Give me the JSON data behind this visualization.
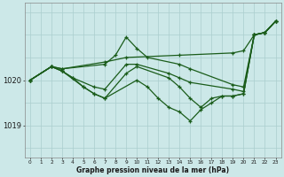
{
  "title": "Graphe pression niveau de la mer (hPa)",
  "bg_color": "#cce8e8",
  "line_color": "#1a5c1a",
  "grid_color": "#aacece",
  "ylabel_ticks": [
    1019,
    1020
  ],
  "xlim": [
    -0.5,
    23.5
  ],
  "ylim": [
    1018.3,
    1021.7
  ],
  "series": [
    {
      "x": [
        0,
        2,
        3,
        7,
        9,
        14,
        19,
        20,
        21,
        22,
        23
      ],
      "y": [
        1020.0,
        1020.3,
        1020.25,
        1020.4,
        1020.5,
        1020.55,
        1020.6,
        1020.65,
        1021.0,
        1021.05,
        1021.3
      ]
    },
    {
      "x": [
        0,
        2,
        3,
        7,
        8,
        9,
        10,
        11,
        14,
        15,
        19,
        20,
        21,
        22,
        23
      ],
      "y": [
        1020.0,
        1020.3,
        1020.25,
        1020.35,
        1020.55,
        1020.95,
        1020.7,
        1020.5,
        1020.35,
        1020.25,
        1019.9,
        1019.85,
        1021.0,
        1021.05,
        1021.3
      ]
    },
    {
      "x": [
        0,
        2,
        3,
        4,
        6,
        7,
        9,
        10,
        13,
        14,
        15,
        19,
        20,
        21,
        22,
        23
      ],
      "y": [
        1020.0,
        1020.3,
        1020.2,
        1020.05,
        1019.85,
        1019.8,
        1020.35,
        1020.35,
        1020.15,
        1020.05,
        1019.95,
        1019.8,
        1019.75,
        1021.0,
        1021.05,
        1021.3
      ]
    },
    {
      "x": [
        0,
        2,
        3,
        4,
        5,
        6,
        7,
        10,
        11,
        12,
        13,
        14,
        15,
        16,
        17,
        18,
        19,
        20,
        21,
        22,
        23
      ],
      "y": [
        1020.0,
        1020.3,
        1020.2,
        1020.05,
        1019.85,
        1019.7,
        1019.6,
        1020.0,
        1019.85,
        1019.6,
        1019.4,
        1019.3,
        1019.1,
        1019.35,
        1019.5,
        1019.65,
        1019.65,
        1019.7,
        1021.0,
        1021.05,
        1021.3
      ]
    },
    {
      "x": [
        0,
        2,
        3,
        5,
        6,
        7,
        9,
        10,
        13,
        14,
        15,
        16,
        17,
        18,
        19,
        20,
        21,
        22,
        23
      ],
      "y": [
        1020.0,
        1020.3,
        1020.2,
        1019.85,
        1019.7,
        1019.6,
        1020.15,
        1020.3,
        1020.05,
        1019.85,
        1019.6,
        1019.4,
        1019.6,
        1019.65,
        1019.65,
        1019.7,
        1021.0,
        1021.05,
        1021.3
      ]
    }
  ]
}
